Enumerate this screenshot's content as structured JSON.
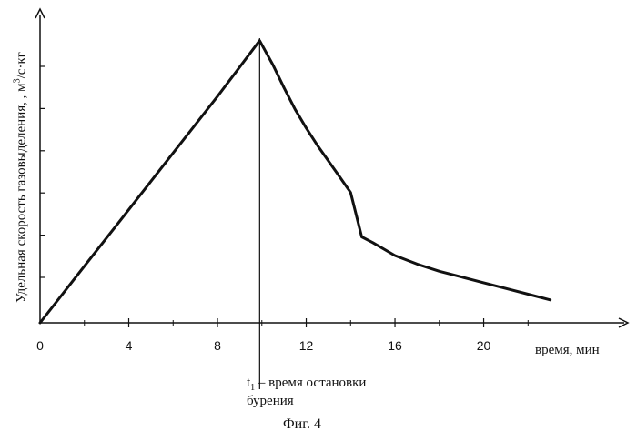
{
  "chart_data": {
    "type": "line",
    "title": "",
    "xlabel": "время, мин",
    "ylabel_prefix": "Удельная скорость газовыделения, , м",
    "ylabel_sup": "3",
    "ylabel_suffix": "/с·кг",
    "x_ticks": [
      "0",
      "4",
      "8",
      "12",
      "16",
      "20"
    ],
    "x_tick_values": [
      0,
      4,
      8,
      12,
      16,
      20
    ],
    "xlim": [
      0,
      26.5
    ],
    "ylim": [
      0,
      1
    ],
    "y_ticks_count": 6,
    "series": [
      {
        "x": [
          0,
          2,
          4,
          6,
          8,
          9.9,
          10.5,
          11,
          11.5,
          12,
          12.5,
          13,
          13.5,
          14,
          14.5,
          15,
          16,
          17,
          18,
          19,
          20,
          21,
          22,
          23
        ],
        "y": [
          0,
          0.198,
          0.395,
          0.593,
          0.79,
          0.985,
          0.9,
          0.82,
          0.745,
          0.68,
          0.62,
          0.565,
          0.51,
          0.455,
          0.3,
          0.28,
          0.235,
          0.205,
          0.18,
          0.16,
          0.14,
          0.12,
          0.1,
          0.08
        ]
      }
    ],
    "annotations": {
      "t1_x": 9.9,
      "t1_symbol": "t",
      "t1_sub": "1",
      "t1_line1": " – время остановки",
      "t1_line2": "бурения"
    },
    "figure_caption": "Фиг. 4"
  }
}
